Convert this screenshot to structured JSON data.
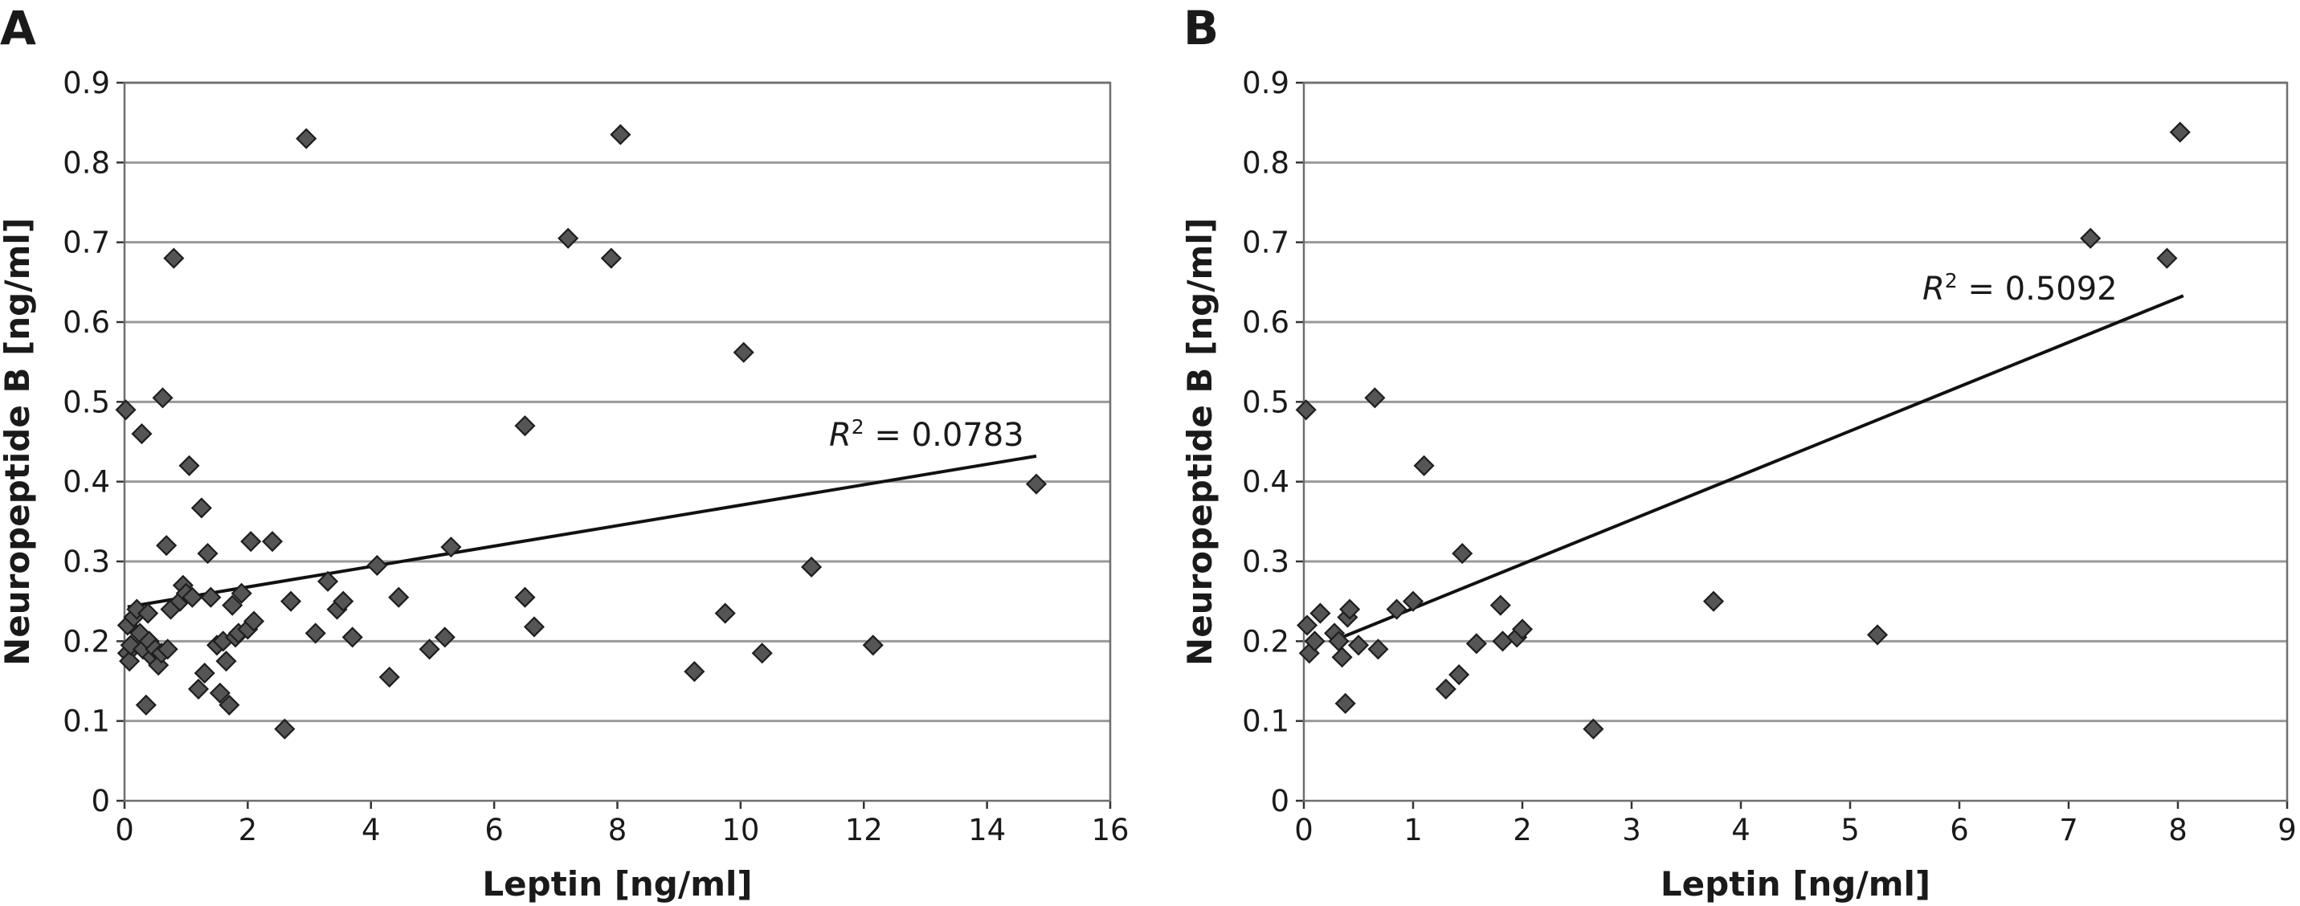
{
  "chart_data": [
    {
      "type": "scatter",
      "panel": "A",
      "xlabel": "Leptin [ng/ml]",
      "ylabel": "Neuropeptide B [ng/ml]",
      "xlim": [
        0,
        16
      ],
      "ylim": [
        0,
        0.9
      ],
      "xticks": [
        "0",
        "2",
        "4",
        "6",
        "8",
        "10",
        "12",
        "14",
        "16"
      ],
      "yticks": [
        "0",
        "0.1",
        "0.2",
        "0.3",
        "0.4",
        "0.5",
        "0.6",
        "0.7",
        "0.8",
        "0.9"
      ],
      "grid": "horizontal",
      "r2_label": "= 0.0783",
      "trendline": {
        "x": [
          0.05,
          14.8
        ],
        "y": [
          0.243,
          0.432
        ]
      },
      "points": [
        [
          0.02,
          0.49
        ],
        [
          0.05,
          0.22
        ],
        [
          0.05,
          0.185
        ],
        [
          0.08,
          0.175
        ],
        [
          0.1,
          0.195
        ],
        [
          0.15,
          0.23
        ],
        [
          0.2,
          0.24
        ],
        [
          0.25,
          0.21
        ],
        [
          0.28,
          0.46
        ],
        [
          0.3,
          0.19
        ],
        [
          0.35,
          0.12
        ],
        [
          0.38,
          0.235
        ],
        [
          0.4,
          0.2
        ],
        [
          0.45,
          0.18
        ],
        [
          0.5,
          0.19
        ],
        [
          0.55,
          0.17
        ],
        [
          0.6,
          0.185
        ],
        [
          0.62,
          0.505
        ],
        [
          0.68,
          0.32
        ],
        [
          0.7,
          0.19
        ],
        [
          0.75,
          0.24
        ],
        [
          0.8,
          0.68
        ],
        [
          0.9,
          0.25
        ],
        [
          0.95,
          0.27
        ],
        [
          1.0,
          0.26
        ],
        [
          1.05,
          0.42
        ],
        [
          1.1,
          0.255
        ],
        [
          1.2,
          0.14
        ],
        [
          1.25,
          0.367
        ],
        [
          1.3,
          0.16
        ],
        [
          1.35,
          0.31
        ],
        [
          1.4,
          0.255
        ],
        [
          1.5,
          0.195
        ],
        [
          1.55,
          0.135
        ],
        [
          1.6,
          0.2
        ],
        [
          1.65,
          0.175
        ],
        [
          1.7,
          0.12
        ],
        [
          1.75,
          0.245
        ],
        [
          1.8,
          0.205
        ],
        [
          1.85,
          0.21
        ],
        [
          1.9,
          0.26
        ],
        [
          2.0,
          0.215
        ],
        [
          2.05,
          0.325
        ],
        [
          2.1,
          0.225
        ],
        [
          2.4,
          0.325
        ],
        [
          2.6,
          0.09
        ],
        [
          2.7,
          0.25
        ],
        [
          2.95,
          0.83
        ],
        [
          3.1,
          0.21
        ],
        [
          3.3,
          0.275
        ],
        [
          3.45,
          0.24
        ],
        [
          3.55,
          0.25
        ],
        [
          3.7,
          0.205
        ],
        [
          4.1,
          0.295
        ],
        [
          4.3,
          0.155
        ],
        [
          4.45,
          0.255
        ],
        [
          4.95,
          0.19
        ],
        [
          5.2,
          0.205
        ],
        [
          5.3,
          0.318
        ],
        [
          6.5,
          0.47
        ],
        [
          6.5,
          0.255
        ],
        [
          6.65,
          0.218
        ],
        [
          7.2,
          0.705
        ],
        [
          7.9,
          0.68
        ],
        [
          8.05,
          0.835
        ],
        [
          9.25,
          0.162
        ],
        [
          9.75,
          0.235
        ],
        [
          10.05,
          0.562
        ],
        [
          10.35,
          0.185
        ],
        [
          11.15,
          0.293
        ],
        [
          12.15,
          0.195
        ],
        [
          14.8,
          0.397
        ]
      ]
    },
    {
      "type": "scatter",
      "panel": "B",
      "xlabel": "Leptin [ng/ml]",
      "ylabel": "Neuropeptide B [ng/ml]",
      "xlim": [
        0,
        9
      ],
      "ylim": [
        0,
        0.9
      ],
      "xticks": [
        "0",
        "1",
        "2",
        "3",
        "4",
        "5",
        "6",
        "7",
        "8",
        "9"
      ],
      "yticks": [
        "0",
        "0.1",
        "0.2",
        "0.3",
        "0.4",
        "0.5",
        "0.6",
        "0.7",
        "0.8",
        "0.9"
      ],
      "grid": "horizontal",
      "r2_label": "= 0.5092",
      "trendline": {
        "x": [
          0.35,
          8.05
        ],
        "y": [
          0.205,
          0.633
        ]
      },
      "points": [
        [
          0.02,
          0.49
        ],
        [
          0.03,
          0.22
        ],
        [
          0.05,
          0.185
        ],
        [
          0.1,
          0.2
        ],
        [
          0.15,
          0.235
        ],
        [
          0.28,
          0.21
        ],
        [
          0.32,
          0.2
        ],
        [
          0.35,
          0.18
        ],
        [
          0.38,
          0.122
        ],
        [
          0.4,
          0.23
        ],
        [
          0.42,
          0.24
        ],
        [
          0.5,
          0.195
        ],
        [
          0.65,
          0.505
        ],
        [
          0.68,
          0.19
        ],
        [
          0.85,
          0.24
        ],
        [
          1.0,
          0.25
        ],
        [
          1.1,
          0.42
        ],
        [
          1.3,
          0.14
        ],
        [
          1.42,
          0.158
        ],
        [
          1.45,
          0.31
        ],
        [
          1.58,
          0.197
        ],
        [
          1.8,
          0.245
        ],
        [
          1.82,
          0.2
        ],
        [
          1.95,
          0.205
        ],
        [
          2.0,
          0.215
        ],
        [
          2.65,
          0.09
        ],
        [
          3.75,
          0.25
        ],
        [
          5.25,
          0.208
        ],
        [
          7.2,
          0.705
        ],
        [
          7.9,
          0.68
        ],
        [
          8.02,
          0.838
        ]
      ]
    }
  ]
}
